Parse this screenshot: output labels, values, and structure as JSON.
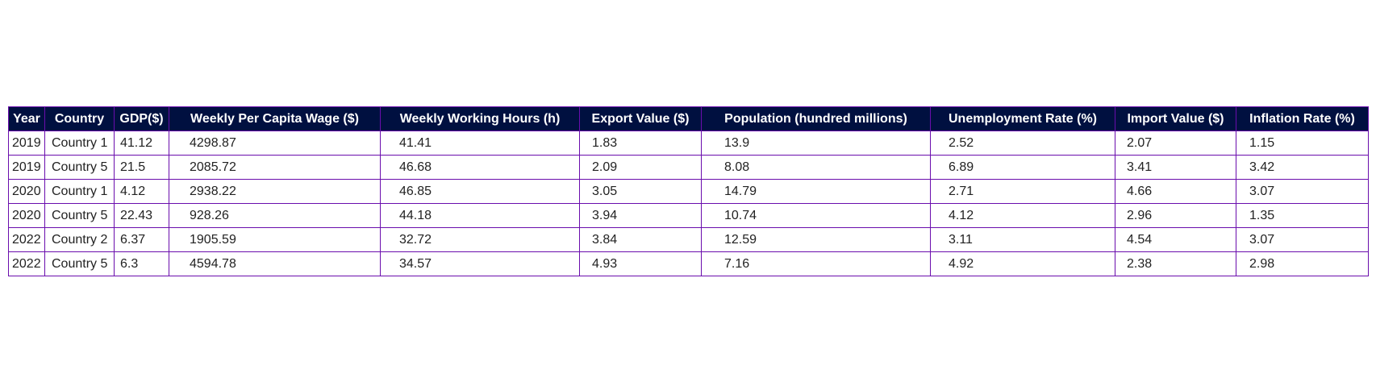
{
  "colors": {
    "header_background": "#001040",
    "header_text": "#ffffff",
    "border": "#6a0dad",
    "cell_text": "#222222"
  },
  "chart_data": {
    "type": "table",
    "columns": [
      "Year",
      "Country",
      "GDP($)",
      "Weekly Per Capita Wage ($)",
      "Weekly Working Hours (h)",
      "Export Value ($)",
      "Population (hundred millions)",
      "Unemployment Rate (%)",
      "Import Value ($)",
      "Inflation Rate (%)"
    ],
    "rows": [
      [
        "2019",
        "Country 1",
        "41.12",
        "4298.87",
        "41.41",
        "1.83",
        "13.9",
        "2.52",
        "2.07",
        "1.15"
      ],
      [
        "2019",
        "Country 5",
        "21.5",
        "2085.72",
        "46.68",
        "2.09",
        "8.08",
        "6.89",
        "3.41",
        "3.42"
      ],
      [
        "2020",
        "Country 1",
        "4.12",
        "2938.22",
        "46.85",
        "3.05",
        "14.79",
        "2.71",
        "4.66",
        "3.07"
      ],
      [
        "2020",
        "Country 5",
        "22.43",
        "928.26",
        "44.18",
        "3.94",
        "10.74",
        "4.12",
        "2.96",
        "1.35"
      ],
      [
        "2022",
        "Country 2",
        "6.37",
        "1905.59",
        "32.72",
        "3.84",
        "12.59",
        "3.11",
        "4.54",
        "3.07"
      ],
      [
        "2022",
        "Country 5",
        "6.3",
        "4594.78",
        "34.57",
        "4.93",
        "7.16",
        "4.92",
        "2.38",
        "2.98"
      ]
    ]
  }
}
